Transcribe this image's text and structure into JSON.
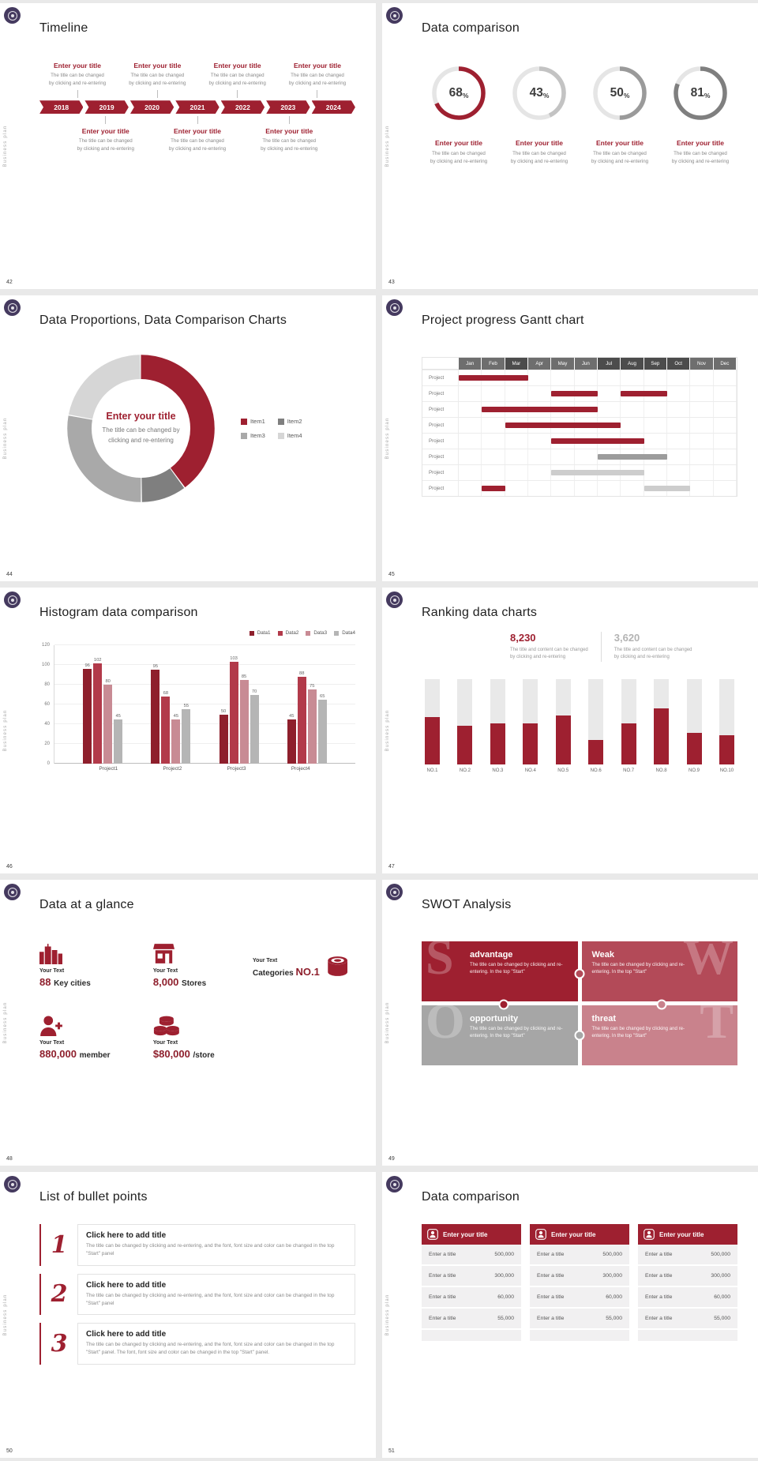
{
  "common": {
    "side_label": "Business plan",
    "brand_color": "#9e2030",
    "badge_color": "#453a5f"
  },
  "slides": [
    {
      "page": "42",
      "title": "Timeline",
      "type": "timeline",
      "timeline": {
        "years": [
          "2018",
          "2019",
          "2020",
          "2021",
          "2022",
          "2023",
          "2024"
        ],
        "top_count": 4,
        "bottom_count": 3,
        "item_title": "Enter your title",
        "item_body": [
          "The title can be changed",
          "by clicking and re-entering"
        ]
      }
    },
    {
      "page": "43",
      "title": "Data comparison",
      "type": "donuts",
      "track_color": "#e5e5e5",
      "item_title": "Enter your title",
      "item_body": [
        "The title can be changed",
        "by clicking and re-entering"
      ],
      "donuts": [
        {
          "value": 68,
          "color": "#9e2030"
        },
        {
          "value": 43,
          "color": "#c3c3c3"
        },
        {
          "value": 50,
          "color": "#9a9a9a"
        },
        {
          "value": 81,
          "color": "#7f7f7f"
        }
      ]
    },
    {
      "page": "44",
      "title": "Data Proportions, Data Comparison Charts",
      "type": "bigdonut",
      "chart": {
        "type": "pie",
        "center_title": "Enter your title",
        "center_body": [
          "The title can be changed by",
          "clicking and re-entering"
        ],
        "segments": [
          {
            "label": "Item1",
            "value": 40,
            "color": "#9e2030"
          },
          {
            "label": "Item2",
            "value": 10,
            "color": "#7f7f7f"
          },
          {
            "label": "Item3",
            "value": 28,
            "color": "#a9a9a9"
          },
          {
            "label": "Item4",
            "value": 22,
            "color": "#d6d6d6"
          }
        ]
      }
    },
    {
      "page": "45",
      "title": "Project progress Gantt chart",
      "type": "gantt",
      "gantt": {
        "months": [
          "Jan",
          "Feb",
          "Mar",
          "Apr",
          "May",
          "Jun",
          "Jul",
          "Aug",
          "Sep",
          "Oct",
          "Nov",
          "Dec"
        ],
        "row_label": "Project",
        "rows": [
          {
            "bars": [
              {
                "start": 0,
                "end": 3,
                "color": "red"
              }
            ]
          },
          {
            "bars": [
              {
                "start": 4,
                "end": 6,
                "color": "red"
              },
              {
                "start": 7,
                "end": 9,
                "color": "red"
              }
            ]
          },
          {
            "bars": [
              {
                "start": 1,
                "end": 6,
                "color": "red"
              }
            ]
          },
          {
            "bars": [
              {
                "start": 2,
                "end": 7,
                "color": "red"
              }
            ]
          },
          {
            "bars": [
              {
                "start": 4,
                "end": 8,
                "color": "red"
              }
            ]
          },
          {
            "bars": [
              {
                "start": 6,
                "end": 9,
                "color": "gray"
              }
            ]
          },
          {
            "bars": [
              {
                "start": 4,
                "end": 8,
                "color": "lightgray"
              }
            ]
          },
          {
            "bars": [
              {
                "start": 1,
                "end": 2,
                "color": "red"
              },
              {
                "start": 8,
                "end": 10,
                "color": "lightgray"
              }
            ]
          }
        ]
      }
    },
    {
      "page": "46",
      "title": "Histogram data comparison",
      "type": "histogram",
      "chart_data": {
        "type": "bar",
        "categories": [
          "Project1",
          "Project2",
          "Project3",
          "Project4"
        ],
        "series": [
          {
            "name": "Data1",
            "color": "#8e1f2c",
            "values": [
              96,
              95,
              50,
              45
            ]
          },
          {
            "name": "Data2",
            "color": "#b23a4a",
            "values": [
              102,
              68,
              103,
              88
            ]
          },
          {
            "name": "Data3",
            "color": "#c88b94",
            "values": [
              80,
              45,
              85,
              75
            ]
          },
          {
            "name": "Data4",
            "color": "#b5b5b5",
            "values": [
              45,
              55,
              70,
              65
            ]
          }
        ],
        "ylim": [
          0,
          120
        ],
        "yticks": [
          0,
          20,
          40,
          60,
          80,
          100,
          120
        ]
      }
    },
    {
      "page": "47",
      "title": "Ranking data charts",
      "type": "ranking",
      "ranking": {
        "stat_primary": {
          "value": "8,230",
          "body": [
            "The title and content can be changed",
            "by clicking and re-entering"
          ]
        },
        "stat_secondary": {
          "value": "3,620",
          "body": [
            "The title and content can be changed",
            "by clicking and re-entering"
          ]
        },
        "categories": [
          "NO.1",
          "NO.2",
          "NO.3",
          "NO.4",
          "NO.5",
          "NO.6",
          "NO.7",
          "NO.8",
          "NO.9",
          "NO.10"
        ],
        "values_pct": [
          55,
          45,
          48,
          48,
          57,
          28,
          48,
          65,
          37,
          34
        ]
      }
    },
    {
      "page": "48",
      "title": "Data at a glance",
      "type": "stats",
      "stats": [
        {
          "icon": "city-buildings",
          "label": "Your Text",
          "value": "88",
          "unit": "Key cities"
        },
        {
          "icon": "store",
          "label": "Your Text",
          "value": "8,000",
          "unit": "Stores"
        },
        {
          "icon": "barrel",
          "label": "Your Text",
          "value": "NO.1",
          "unit": "Categories",
          "unit_first": true,
          "icon_side": "right"
        },
        {
          "icon": "member",
          "label": "Your Text",
          "value": "880,000",
          "unit": "member"
        },
        {
          "icon": "coins",
          "label": "Your Text",
          "value": "$80,000",
          "unit": "/store"
        }
      ]
    },
    {
      "page": "49",
      "title": "SWOT Analysis",
      "type": "swot",
      "swot": [
        {
          "letter": "S",
          "title": "advantage",
          "body": "The title can be changed by clicking and re-entering. In the top \"Start\"",
          "color": "#9e2030"
        },
        {
          "letter": "W",
          "title": "Weak",
          "body": "The title can be changed by clicking and re-entering. In the top \"Start\"",
          "color": "#b34a58"
        },
        {
          "letter": "O",
          "title": "opportunity",
          "body": "The title can be changed by clicking and re-entering. In the top \"Start\"",
          "color": "#a6a6a6"
        },
        {
          "letter": "T",
          "title": "threat",
          "body": "The title can be changed by clicking and re-entering. In the top \"Start\"",
          "color": "#c9828c"
        }
      ]
    },
    {
      "page": "50",
      "title": "List of bullet points",
      "type": "bullets",
      "bullets": [
        {
          "number": "1",
          "title": "Click here to add title",
          "body": "The title can be changed by clicking and re-entering, and the font, font size and color can be changed in the top \"Start\" panel"
        },
        {
          "number": "2",
          "title": "Click here to add title",
          "body": "The title can be changed by clicking and re-entering, and the font, font size and color can be changed in the top \"Start\" panel"
        },
        {
          "number": "3",
          "title": "Click here to add title",
          "body": "The title can be changed by clicking and re-entering, and the font, font size and color can be changed in the top \"Start\" panel. The font, font size and color can be changed in the top \"Start\" panel."
        }
      ]
    },
    {
      "page": "51",
      "title": "Data comparison",
      "type": "tables",
      "tables": {
        "count": 3,
        "header": "Enter your title",
        "rows": [
          [
            "Enter a title",
            "500,000"
          ],
          [
            "Enter a title",
            "300,000"
          ],
          [
            "Enter a title",
            "60,000"
          ],
          [
            "Enter a title",
            "55,000"
          ]
        ]
      }
    }
  ]
}
